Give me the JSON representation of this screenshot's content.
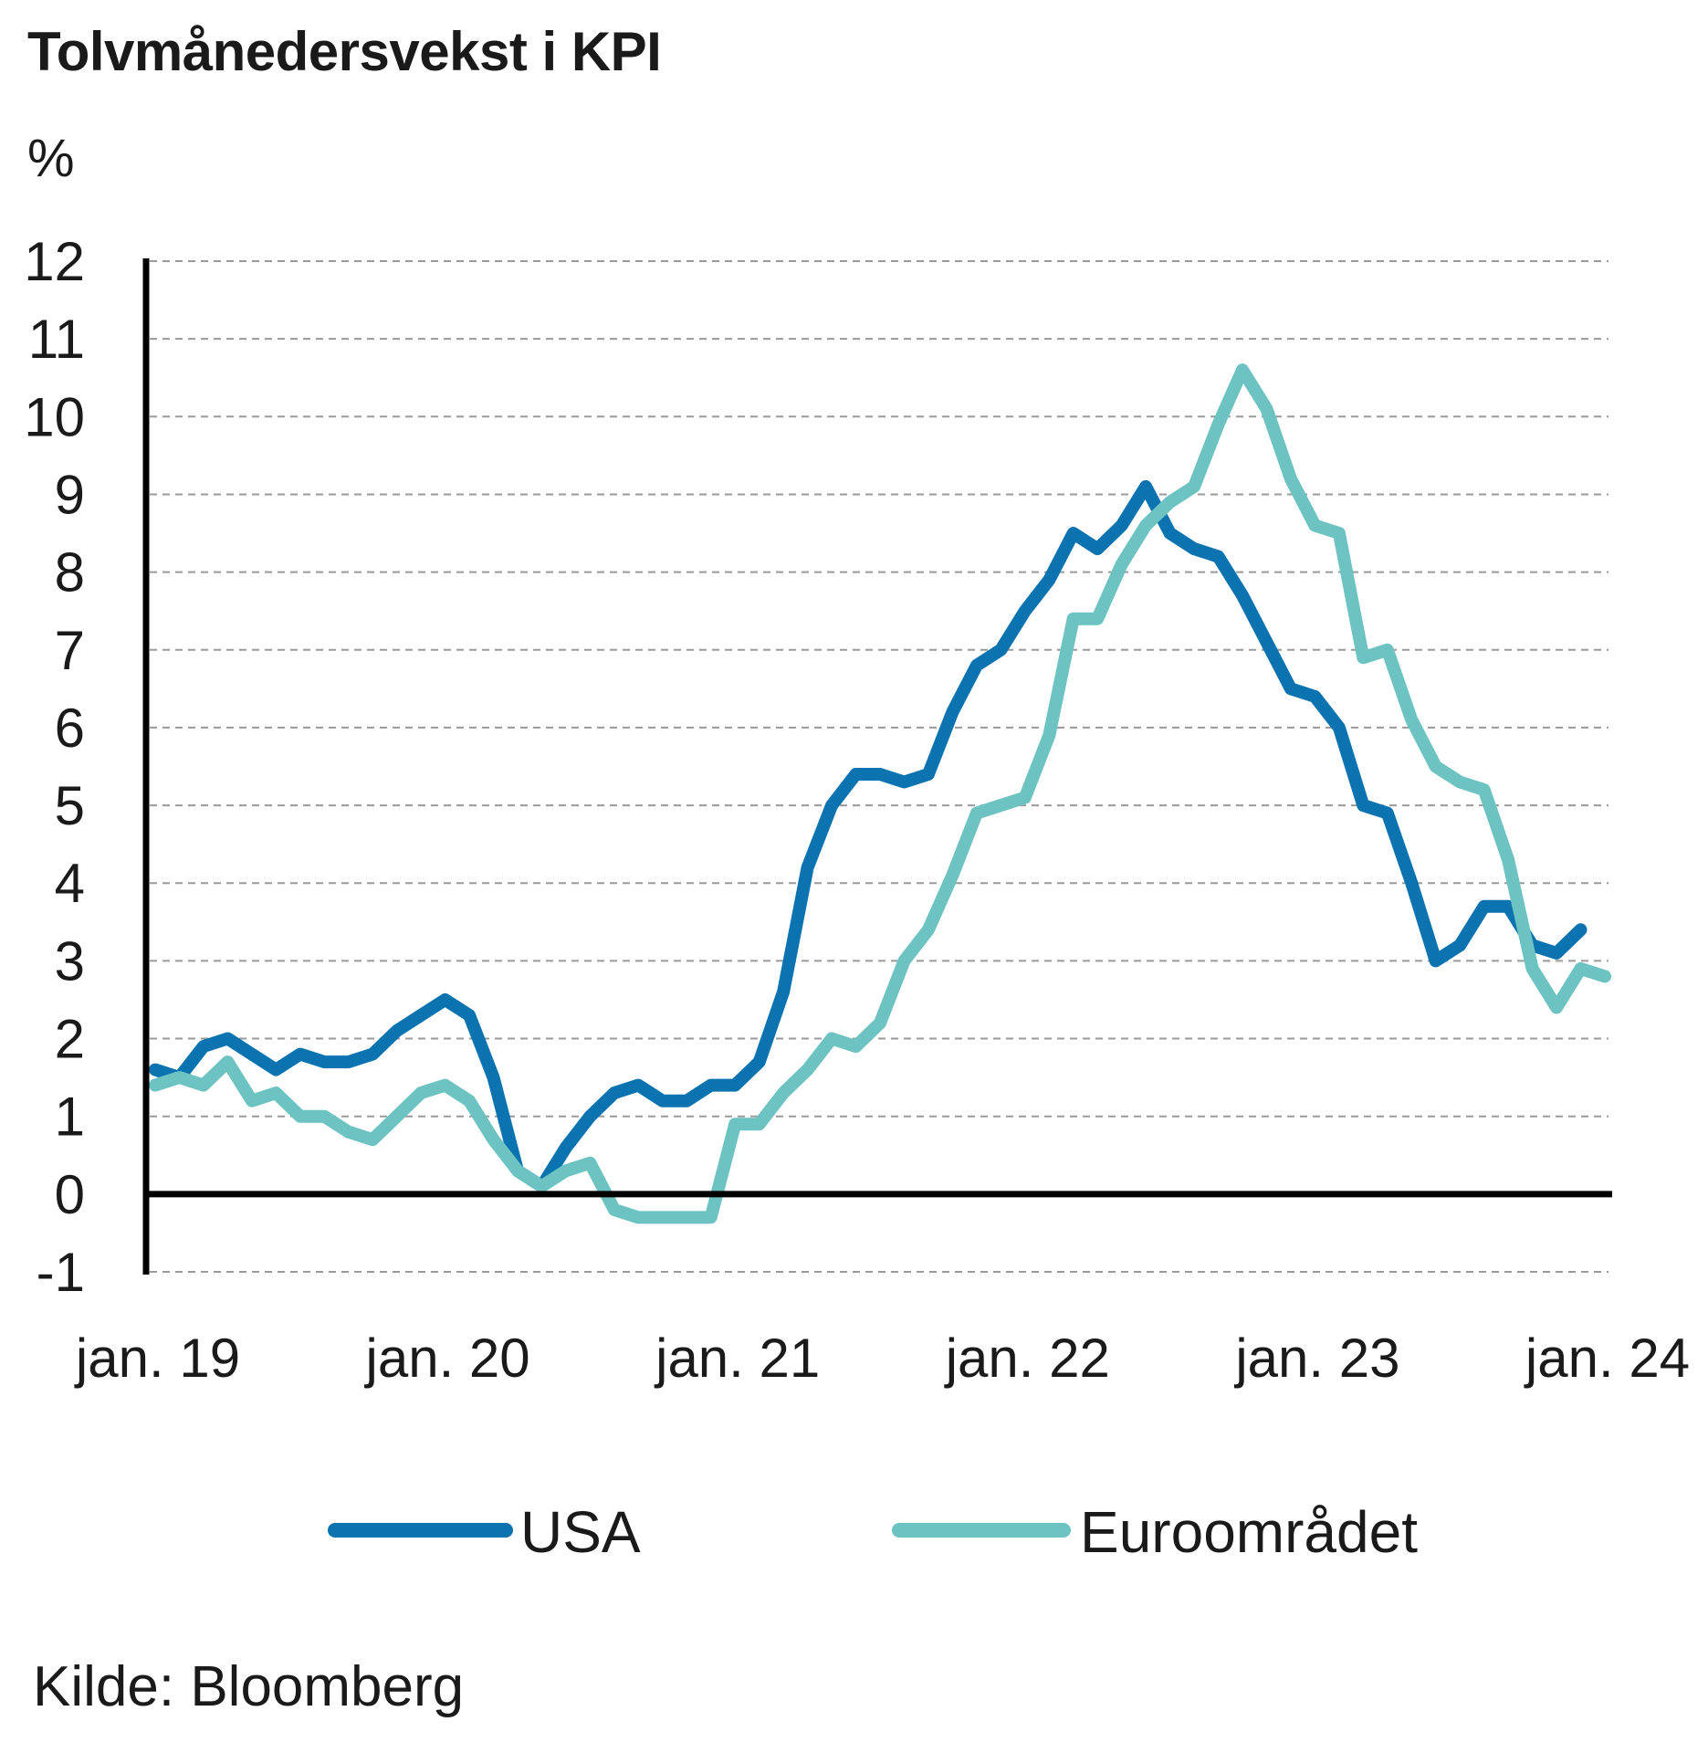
{
  "title": "Tolvmånedersvekst i KPI",
  "source": "Kilde: Bloomberg",
  "colors": {
    "usa": "#0a73b0",
    "euro": "#6cc3c1",
    "axis": "#000000",
    "grid": "#9a9a9a"
  },
  "chart_data": {
    "type": "line",
    "title": "Tolvmånedersvekst i KPI",
    "ylabel": "%",
    "xlabel": "",
    "ylim": [
      -1,
      12
    ],
    "yticks": [
      -1,
      0,
      1,
      2,
      3,
      4,
      5,
      6,
      7,
      8,
      9,
      10,
      11,
      12
    ],
    "xticks": [
      "jan. 19",
      "jan. 20",
      "jan. 21",
      "jan. 22",
      "jan. 23",
      "jan. 24"
    ],
    "x_start": "2019-01",
    "x_end": "2024-01",
    "grid": true,
    "legend_position": "bottom",
    "series": [
      {
        "name": "USA",
        "color": "#0a73b0",
        "start": "2019-01",
        "values": [
          1.6,
          1.5,
          1.9,
          2.0,
          1.8,
          1.6,
          1.8,
          1.7,
          1.7,
          1.8,
          2.1,
          2.3,
          2.5,
          2.3,
          1.5,
          0.3,
          0.1,
          0.6,
          1.0,
          1.3,
          1.4,
          1.2,
          1.2,
          1.4,
          1.4,
          1.7,
          2.6,
          4.2,
          5.0,
          5.4,
          5.4,
          5.3,
          5.4,
          6.2,
          6.8,
          7.0,
          7.5,
          7.9,
          8.5,
          8.3,
          8.6,
          9.1,
          8.5,
          8.3,
          8.2,
          7.7,
          7.1,
          6.5,
          6.4,
          6.0,
          5.0,
          4.9,
          4.0,
          3.0,
          3.2,
          3.7,
          3.7,
          3.2,
          3.1,
          3.4
        ]
      },
      {
        "name": "Euroområdet",
        "color": "#6cc3c1",
        "start": "2019-01",
        "values": [
          1.4,
          1.5,
          1.4,
          1.7,
          1.2,
          1.3,
          1.0,
          1.0,
          0.8,
          0.7,
          1.0,
          1.3,
          1.4,
          1.2,
          0.7,
          0.3,
          0.1,
          0.3,
          0.4,
          -0.2,
          -0.3,
          -0.3,
          -0.3,
          -0.3,
          0.9,
          0.9,
          1.3,
          1.6,
          2.0,
          1.9,
          2.2,
          3.0,
          3.4,
          4.1,
          4.9,
          5.0,
          5.1,
          5.9,
          7.4,
          7.4,
          8.1,
          8.6,
          8.9,
          9.1,
          9.9,
          10.6,
          10.1,
          9.2,
          8.6,
          8.5,
          6.9,
          7.0,
          6.1,
          5.5,
          5.3,
          5.2,
          4.3,
          2.9,
          2.4,
          2.9,
          2.8
        ]
      }
    ]
  }
}
